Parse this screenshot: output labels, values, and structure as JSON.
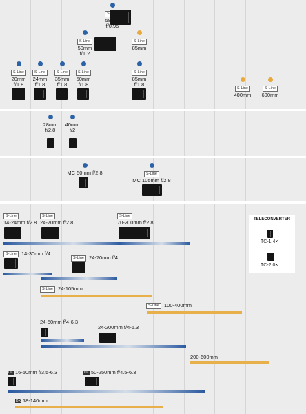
{
  "badges": {
    "sline": "S-Line",
    "dx": "DX"
  },
  "primes": [
    {
      "id": "58",
      "focal": "58mm",
      "aperture": "f/0.95"
    },
    {
      "id": "50-12",
      "focal": "50mm",
      "aperture": "f/1.2"
    },
    {
      "id": "85-fut",
      "focal": "85mm"
    },
    {
      "id": "20",
      "focal": "20mm",
      "aperture": "f/1.8"
    },
    {
      "id": "24",
      "focal": "24mm",
      "aperture": "f/1.8"
    },
    {
      "id": "35",
      "focal": "35mm",
      "aperture": "f/1.8"
    },
    {
      "id": "50-18",
      "focal": "50mm",
      "aperture": "f/1.8"
    },
    {
      "id": "85-18",
      "focal": "85mm",
      "aperture": "f/1.8"
    },
    {
      "id": "400",
      "focal": "400mm"
    },
    {
      "id": "600",
      "focal": "600mm"
    },
    {
      "id": "28",
      "focal": "28mm",
      "aperture": "f/2.8"
    },
    {
      "id": "40",
      "focal": "40mm",
      "aperture": "f/2"
    }
  ],
  "macro": [
    {
      "label": "MC 50mm f/2.8"
    },
    {
      "label": "MC 105mm f/2.8"
    }
  ],
  "zooms": {
    "z1424": "14-24mm f/2.8",
    "z2470": "24-70mm f/2.8",
    "z70200": "70-200mm f/2.8",
    "z1430": "14-30mm f/4",
    "z2470f4": "24-70mm f/4",
    "z24105": "24-105mm",
    "z100400": "100-400mm",
    "z2450": "24-50mm f/4-6.3",
    "z24200": "24-200mm f/4-6.3",
    "z200600": "200-600mm",
    "z1650": "16-50mm f/3.5-6.3",
    "z50250": "50-250mm f/4.5-6.3",
    "z18140": "18-140mm"
  },
  "teleconverter": {
    "title": "TELECONVERTER",
    "tc14": "TC-1.4×",
    "tc20": "TC-2.0×"
  },
  "colors": {
    "current": "#2b5aa0",
    "future": "#e8b04a",
    "info": "#2c63a8"
  }
}
